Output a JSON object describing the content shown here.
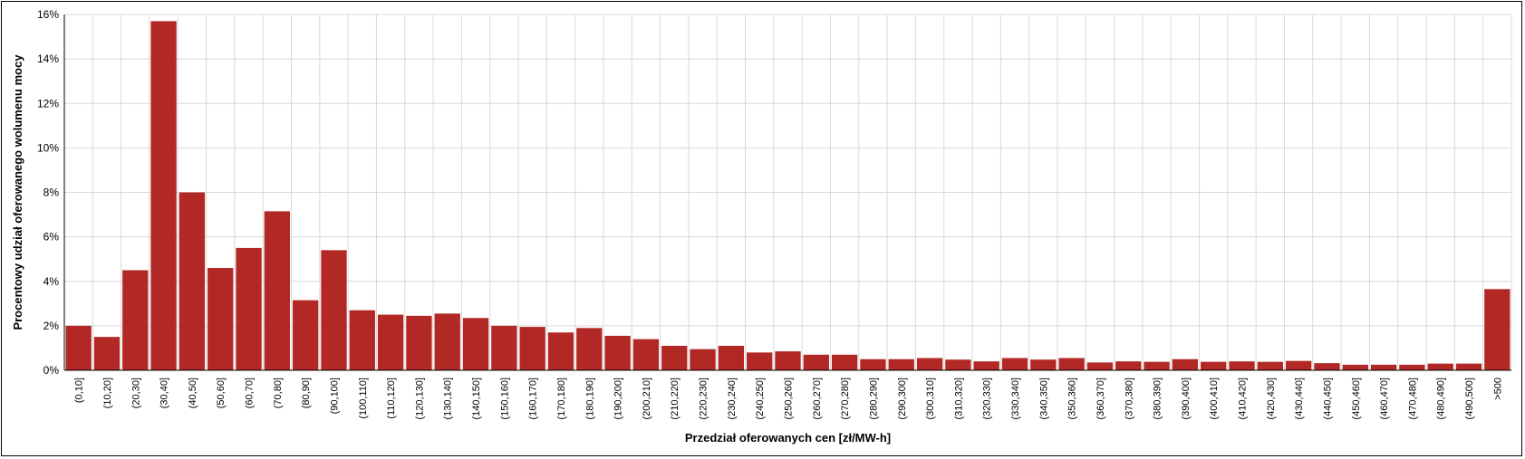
{
  "chart_data": {
    "type": "bar",
    "title": "",
    "xlabel": "Przedział oferowanych cen [zł/MW-h]",
    "ylabel": "Procentowy udział oferowanego wolumenu mocy",
    "ylim": [
      0,
      16
    ],
    "yticks": [
      "0%",
      "2%",
      "4%",
      "6%",
      "8%",
      "10%",
      "12%",
      "14%",
      "16%"
    ],
    "grid": true,
    "bar_color": "#b22825",
    "categories": [
      "(0,10]",
      "(10,20]",
      "(20,30]",
      "(30,40]",
      "(40,50]",
      "(50,60]",
      "(60,70]",
      "(70,80]",
      "(80,90]",
      "(90,100]",
      "(100,110]",
      "(110,120]",
      "(120,130]",
      "(130,140]",
      "(140,150]",
      "(150,160]",
      "(160,170]",
      "(170,180]",
      "(180,190]",
      "(190,200]",
      "(200,210]",
      "(210,220]",
      "(220,230]",
      "(230,240]",
      "(240,250]",
      "(250,260]",
      "(260,270]",
      "(270,280]",
      "(280,290]",
      "(290,300]",
      "(300,310]",
      "(310,320]",
      "(320,330]",
      "(330,340]",
      "(340,350]",
      "(350,360]",
      "(360,370]",
      "(370,380]",
      "(380,390]",
      "(390,400]",
      "(400,410]",
      "(410,420]",
      "(420,430]",
      "(430,440]",
      "(440,450]",
      "(450,460]",
      "(460,470]",
      "(470,480]",
      "(480,490]",
      "(490,500]",
      ">500"
    ],
    "values": [
      2.0,
      1.5,
      4.5,
      15.7,
      8.0,
      4.6,
      5.5,
      7.15,
      3.15,
      5.4,
      2.7,
      2.5,
      2.45,
      2.55,
      2.35,
      2.0,
      1.95,
      1.7,
      1.9,
      1.55,
      1.4,
      1.1,
      0.95,
      1.1,
      0.8,
      0.85,
      0.7,
      0.7,
      0.5,
      0.5,
      0.55,
      0.48,
      0.4,
      0.55,
      0.48,
      0.55,
      0.35,
      0.4,
      0.38,
      0.5,
      0.38,
      0.4,
      0.38,
      0.42,
      0.32,
      0.25,
      0.25,
      0.25,
      0.3,
      0.3,
      3.65
    ]
  }
}
